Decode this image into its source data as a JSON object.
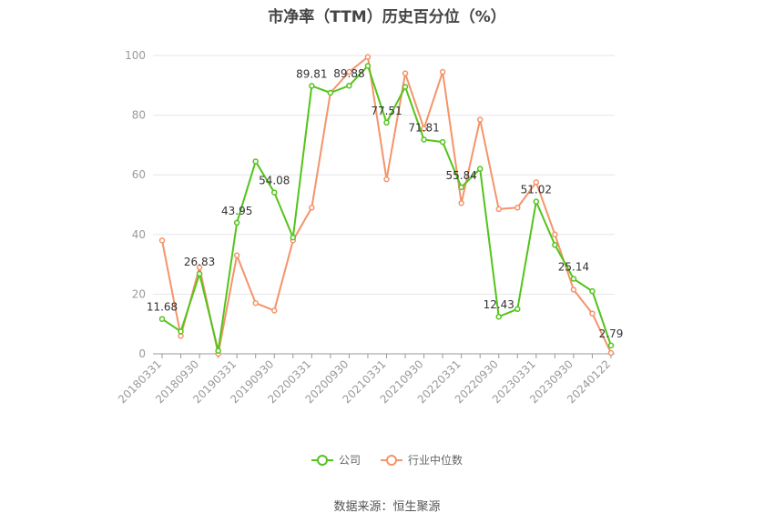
{
  "title": "市净率（TTM）历史百分位（%）",
  "source": "数据来源：恒生聚源",
  "legend": [
    {
      "label": "公司",
      "color": "#52c41a"
    },
    {
      "label": "行业中位数",
      "color": "#f4946a"
    }
  ],
  "chart_data": {
    "type": "line",
    "ylim": [
      0,
      100
    ],
    "yticks": [
      0,
      20,
      40,
      60,
      80,
      100
    ],
    "grid": true,
    "legend_position": "bottom",
    "x_tick_labels": [
      "20180331",
      "20180930",
      "20190331",
      "20190930",
      "20200331",
      "20200930",
      "20210331",
      "20210930",
      "20220331",
      "20220930",
      "20230331",
      "20230930",
      "20240122"
    ],
    "x": [
      "20180331",
      "20180630",
      "20180930",
      "20181231",
      "20190331",
      "20190630",
      "20190930",
      "20191231",
      "20200331",
      "20200630",
      "20200930",
      "20201231",
      "20210331",
      "20210630",
      "20210930",
      "20211231",
      "20220331",
      "20220630",
      "20220930",
      "20221231",
      "20230331",
      "20230630",
      "20230930",
      "20231231",
      "20240122"
    ],
    "series": [
      {
        "name": "公司",
        "color": "#52c41a",
        "values": [
          11.68,
          7.5,
          26.83,
          1.0,
          43.95,
          64.5,
          54.08,
          39.0,
          89.81,
          87.5,
          89.88,
          96.5,
          77.51,
          89.5,
          71.81,
          71.0,
          55.84,
          62.0,
          12.43,
          15.0,
          51.02,
          36.5,
          25.14,
          21.0,
          2.79
        ],
        "labels": {
          "0": "11.68",
          "2": "26.83",
          "4": "43.95",
          "6": "54.08",
          "8": "89.81",
          "10": "89.88",
          "12": "77.51",
          "14": "71.81",
          "16": "55.84",
          "18": "12.43",
          "20": "51.02",
          "22": "25.14",
          "24": "2.79"
        }
      },
      {
        "name": "行业中位数",
        "color": "#f4946a",
        "values": [
          38.0,
          6.0,
          29.0,
          0.0,
          33.0,
          17.0,
          14.5,
          38.0,
          49.0,
          87.5,
          94.5,
          99.5,
          58.5,
          94.0,
          75.5,
          94.5,
          50.5,
          78.5,
          48.5,
          49.0,
          57.5,
          40.0,
          21.5,
          13.5,
          0.3
        ]
      }
    ]
  }
}
